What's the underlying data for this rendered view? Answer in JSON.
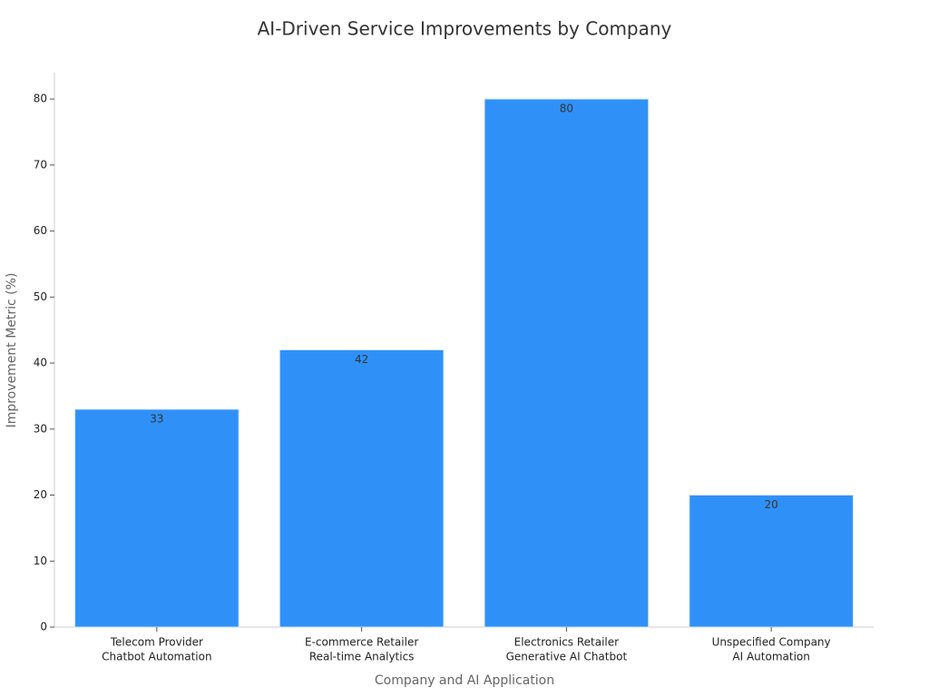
{
  "chart_data": {
    "type": "bar",
    "title": "AI-Driven Service Improvements by Company",
    "x_label": "Company and AI Application",
    "y_label": "Improvement Metric (%)",
    "categories": [
      [
        "Telecom Provider",
        "Chatbot Automation"
      ],
      [
        "E-commerce Retailer",
        "Real-time Analytics"
      ],
      [
        "Electronics Retailer",
        "Generative AI Chatbot"
      ],
      [
        "Unspecified Company",
        "AI Automation"
      ]
    ],
    "values": [
      33,
      42,
      80,
      20
    ],
    "color": "#2f91f8",
    "ylim": [
      0,
      84
    ],
    "yticks": [
      0,
      10,
      20,
      30,
      40,
      50,
      60,
      70,
      80
    ],
    "grid": false
  }
}
